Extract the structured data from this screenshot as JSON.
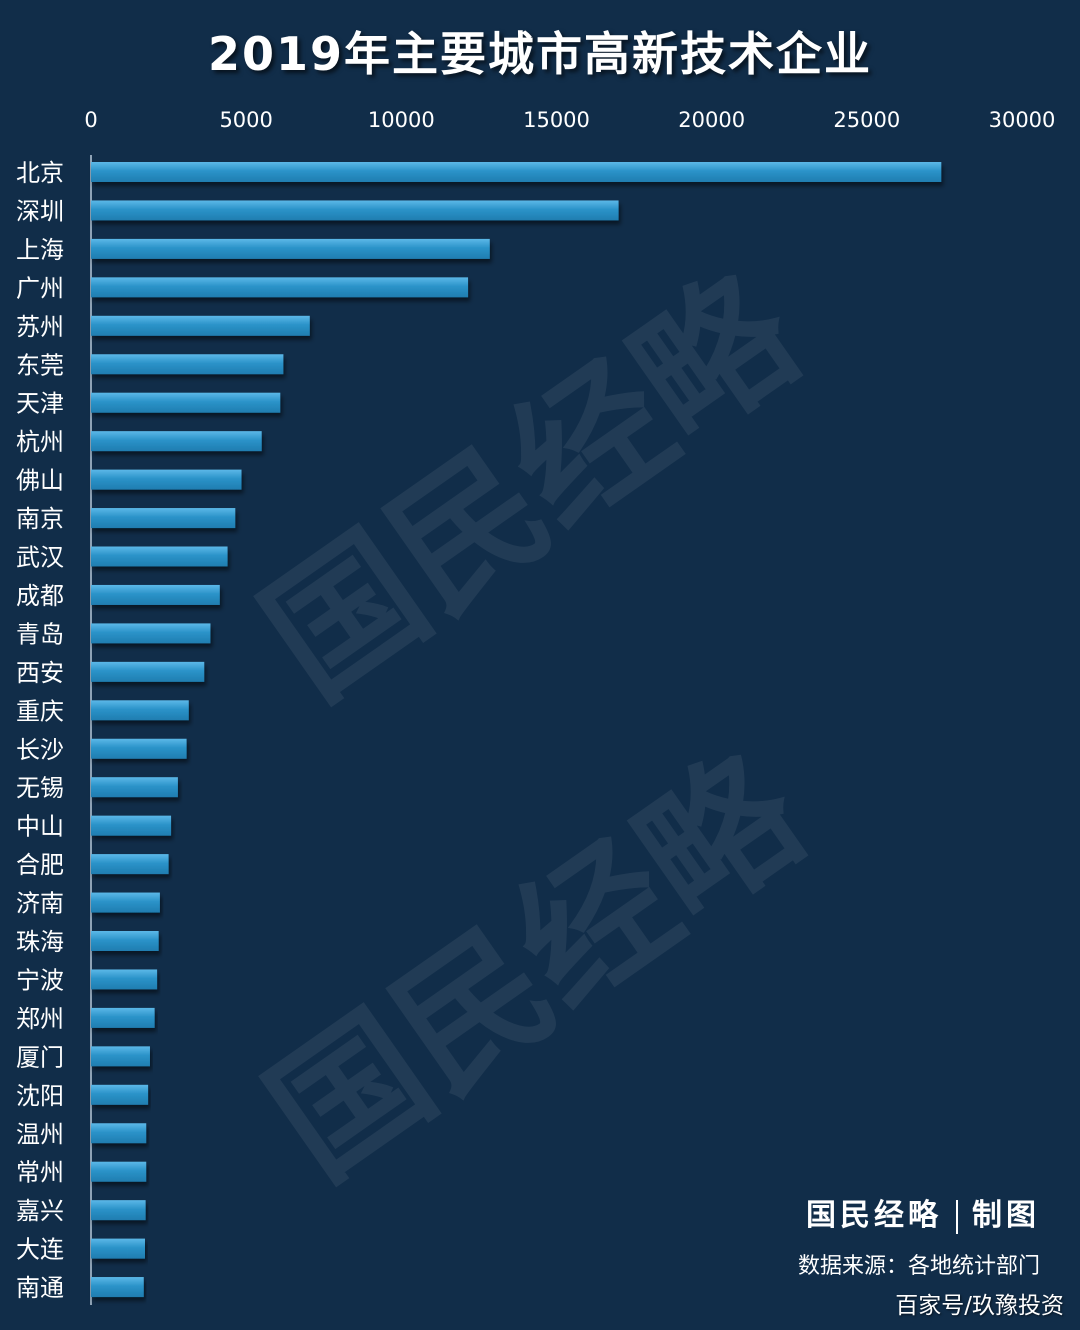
{
  "watermark_text": "国民经略",
  "credit": {
    "brand": "国民经略",
    "made": "制图"
  },
  "source_text": "数据来源：各地统计部门",
  "brand_text": "百家号/玖豫投资",
  "colors": {
    "background": "#112d49",
    "bar": "#2b93c9",
    "bar_light": "#5cb8e8",
    "text": "#ffffff"
  },
  "chart_data": {
    "type": "bar",
    "orientation": "horizontal",
    "title": "2019年主要城市高新技术企业",
    "xlim": [
      0,
      30000
    ],
    "ticks": [
      0,
      5000,
      10000,
      15000,
      20000,
      25000,
      30000
    ],
    "axis_position": "top",
    "grid": false,
    "categories": [
      "北京",
      "深圳",
      "上海",
      "广州",
      "苏州",
      "东莞",
      "天津",
      "杭州",
      "佛山",
      "南京",
      "武汉",
      "成都",
      "青岛",
      "西安",
      "重庆",
      "长沙",
      "无锡",
      "中山",
      "合肥",
      "济南",
      "珠海",
      "宁波",
      "郑州",
      "厦门",
      "沈阳",
      "温州",
      "常州",
      "嘉兴",
      "大连",
      "南通"
    ],
    "values": [
      27400,
      17000,
      12850,
      12150,
      7050,
      6200,
      6100,
      5500,
      4850,
      4650,
      4400,
      4150,
      3850,
      3650,
      3150,
      3080,
      2800,
      2580,
      2500,
      2220,
      2180,
      2130,
      2050,
      1900,
      1840,
      1780,
      1780,
      1760,
      1740,
      1700
    ]
  }
}
